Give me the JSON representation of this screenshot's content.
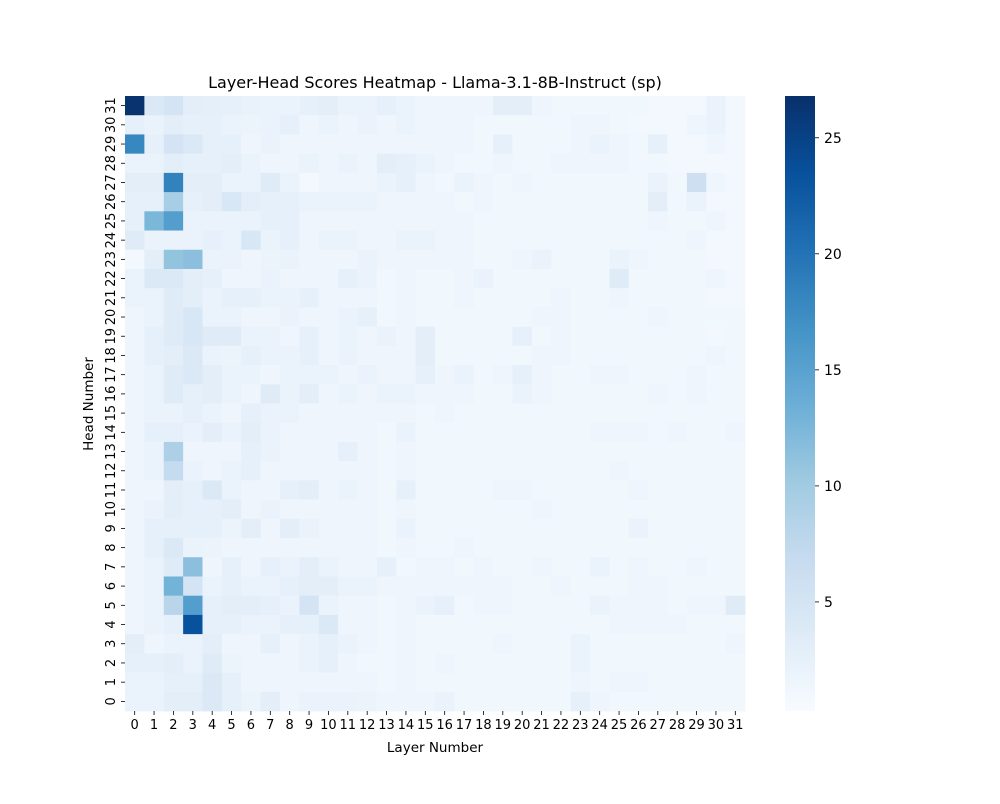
{
  "chart_data": {
    "type": "heatmap",
    "title": "Layer-Head Scores Heatmap - Llama-3.1-8B-Instruct (sp)",
    "xlabel": "Layer Number",
    "ylabel": "Head Number",
    "x_categories": [
      "0",
      "1",
      "2",
      "3",
      "4",
      "5",
      "6",
      "7",
      "8",
      "9",
      "10",
      "11",
      "12",
      "13",
      "14",
      "15",
      "16",
      "17",
      "18",
      "19",
      "20",
      "21",
      "22",
      "23",
      "24",
      "25",
      "26",
      "27",
      "28",
      "29",
      "30",
      "31"
    ],
    "y_categories": [
      "31",
      "30",
      "29",
      "28",
      "27",
      "26",
      "25",
      "24",
      "23",
      "22",
      "21",
      "20",
      "19",
      "18",
      "17",
      "16",
      "15",
      "14",
      "13",
      "12",
      "11",
      "10",
      "9",
      "8",
      "7",
      "6",
      "5",
      "4",
      "3",
      "2",
      "1",
      "0"
    ],
    "colorbar": {
      "vmin": 0.3,
      "vmax": 26.8,
      "ticks": [
        5,
        10,
        15,
        20,
        25
      ],
      "tick_labels": [
        "5",
        "10",
        "15",
        "20",
        "25"
      ],
      "colormap": "Blues"
    },
    "values": [
      [
        26.5,
        4.0,
        5.0,
        3.0,
        2.8,
        2.5,
        2.2,
        2.0,
        2.0,
        2.5,
        3.0,
        2.0,
        2.0,
        2.5,
        2.0,
        1.5,
        1.5,
        1.5,
        1.5,
        3.0,
        3.0,
        1.5,
        1.2,
        1.2,
        1.2,
        1.2,
        1.2,
        1.0,
        1.0,
        1.0,
        2.0,
        1.0
      ],
      [
        2.5,
        2.0,
        3.0,
        2.5,
        2.5,
        2.0,
        1.8,
        2.0,
        2.5,
        1.5,
        2.0,
        1.5,
        2.0,
        1.5,
        2.0,
        1.5,
        1.5,
        1.5,
        1.2,
        1.2,
        1.2,
        1.2,
        1.2,
        1.5,
        1.5,
        1.2,
        1.0,
        1.0,
        1.0,
        1.5,
        2.0,
        1.0
      ],
      [
        18.0,
        2.5,
        5.0,
        4.0,
        2.5,
        2.5,
        1.5,
        2.0,
        1.5,
        1.5,
        1.5,
        1.5,
        1.5,
        1.5,
        1.5,
        1.5,
        1.5,
        1.5,
        1.2,
        2.5,
        1.2,
        1.2,
        1.2,
        1.5,
        2.0,
        1.5,
        1.2,
        2.5,
        1.0,
        1.0,
        1.5,
        1.0
      ],
      [
        2.0,
        2.0,
        3.0,
        2.5,
        2.5,
        3.0,
        2.0,
        1.5,
        1.5,
        2.0,
        1.5,
        2.0,
        1.5,
        3.0,
        2.5,
        2.0,
        1.5,
        1.2,
        1.2,
        1.5,
        1.2,
        1.2,
        1.5,
        1.5,
        1.5,
        1.5,
        1.2,
        1.2,
        1.0,
        1.0,
        1.0,
        1.0
      ],
      [
        3.0,
        3.0,
        18.5,
        3.0,
        3.0,
        2.0,
        2.0,
        3.5,
        2.0,
        1.0,
        1.5,
        1.5,
        1.5,
        2.0,
        2.5,
        1.5,
        1.2,
        2.0,
        1.5,
        1.2,
        1.5,
        1.2,
        1.2,
        1.2,
        1.2,
        1.2,
        1.2,
        2.0,
        1.2,
        6.0,
        1.5,
        1.0
      ],
      [
        2.5,
        2.5,
        9.5,
        2.5,
        3.0,
        4.5,
        3.0,
        2.5,
        2.5,
        2.0,
        2.0,
        2.0,
        2.0,
        1.5,
        1.5,
        1.5,
        1.5,
        1.2,
        1.5,
        1.2,
        1.2,
        1.2,
        1.2,
        1.2,
        1.2,
        1.2,
        1.2,
        3.0,
        1.2,
        2.0,
        1.0,
        1.0
      ],
      [
        2.5,
        12.5,
        15.5,
        2.0,
        2.0,
        2.0,
        2.0,
        2.5,
        2.5,
        1.5,
        1.5,
        1.5,
        1.5,
        1.5,
        1.5,
        1.5,
        1.5,
        1.5,
        1.2,
        1.2,
        1.2,
        1.2,
        1.2,
        1.2,
        1.2,
        1.2,
        1.2,
        1.5,
        1.2,
        1.2,
        1.5,
        1.0
      ],
      [
        3.5,
        2.0,
        2.0,
        2.0,
        2.5,
        2.0,
        4.5,
        2.0,
        2.5,
        1.5,
        2.0,
        2.0,
        1.5,
        1.5,
        2.0,
        2.0,
        1.5,
        1.5,
        1.2,
        1.2,
        1.2,
        1.2,
        1.2,
        1.2,
        1.2,
        1.2,
        1.2,
        1.2,
        1.2,
        1.5,
        1.0,
        1.0
      ],
      [
        1.0,
        3.0,
        11.0,
        11.5,
        2.0,
        2.0,
        1.5,
        1.8,
        2.0,
        1.5,
        1.5,
        1.5,
        2.0,
        1.5,
        1.5,
        1.5,
        1.5,
        1.5,
        1.2,
        1.2,
        1.5,
        2.0,
        1.2,
        1.2,
        1.2,
        2.0,
        1.5,
        1.2,
        1.2,
        1.2,
        1.0,
        1.0
      ],
      [
        2.0,
        4.0,
        4.0,
        3.0,
        2.5,
        1.5,
        1.5,
        2.0,
        1.5,
        1.5,
        1.5,
        2.5,
        2.0,
        1.2,
        1.5,
        1.2,
        1.2,
        1.5,
        2.0,
        1.2,
        1.2,
        1.2,
        1.2,
        1.2,
        1.2,
        3.5,
        1.2,
        1.2,
        1.2,
        1.2,
        1.5,
        1.0
      ],
      [
        2.0,
        2.0,
        3.5,
        3.0,
        2.0,
        2.5,
        2.5,
        2.0,
        2.0,
        2.5,
        1.5,
        1.5,
        1.5,
        1.2,
        1.5,
        1.2,
        1.2,
        1.5,
        1.2,
        1.2,
        1.2,
        1.2,
        1.5,
        1.2,
        1.2,
        1.5,
        1.2,
        1.2,
        1.2,
        1.2,
        1.0,
        1.0
      ],
      [
        1.5,
        2.0,
        3.5,
        4.5,
        2.0,
        2.0,
        1.5,
        1.5,
        2.0,
        1.5,
        1.5,
        2.0,
        2.5,
        1.2,
        1.5,
        1.2,
        1.2,
        1.2,
        1.2,
        1.2,
        1.2,
        1.5,
        1.5,
        1.2,
        1.2,
        1.2,
        1.2,
        1.5,
        1.2,
        1.2,
        1.2,
        1.2
      ],
      [
        1.5,
        2.5,
        3.5,
        4.5,
        3.5,
        3.5,
        2.0,
        2.0,
        1.5,
        2.5,
        1.5,
        2.0,
        1.5,
        2.0,
        1.5,
        3.0,
        1.2,
        1.2,
        1.2,
        1.2,
        2.5,
        1.2,
        1.5,
        1.2,
        1.2,
        1.2,
        1.2,
        1.2,
        1.2,
        1.2,
        1.0,
        1.2
      ],
      [
        1.5,
        2.5,
        3.0,
        4.0,
        2.0,
        1.8,
        2.5,
        2.0,
        2.0,
        2.5,
        1.5,
        2.0,
        1.5,
        1.5,
        1.5,
        3.0,
        1.2,
        1.2,
        1.2,
        1.2,
        1.2,
        1.5,
        1.5,
        1.2,
        1.2,
        1.2,
        1.2,
        1.2,
        1.2,
        1.2,
        1.5,
        1.2
      ],
      [
        1.5,
        2.0,
        3.5,
        4.0,
        3.0,
        2.0,
        2.0,
        1.5,
        2.0,
        2.0,
        2.0,
        1.5,
        2.0,
        1.5,
        1.5,
        2.5,
        1.5,
        2.0,
        1.2,
        1.5,
        2.5,
        1.5,
        1.2,
        1.2,
        1.5,
        1.5,
        1.2,
        1.2,
        1.2,
        1.5,
        1.2,
        1.2
      ],
      [
        1.5,
        2.0,
        3.5,
        2.5,
        3.0,
        2.0,
        1.5,
        3.5,
        2.0,
        3.0,
        1.5,
        2.0,
        1.5,
        2.0,
        2.0,
        1.5,
        1.5,
        1.5,
        1.2,
        1.2,
        2.0,
        1.5,
        1.2,
        1.2,
        1.2,
        1.2,
        1.2,
        1.5,
        1.2,
        1.5,
        1.2,
        1.2
      ],
      [
        1.5,
        2.0,
        2.0,
        2.5,
        2.0,
        1.5,
        2.5,
        2.0,
        2.0,
        1.5,
        1.5,
        1.5,
        1.5,
        1.5,
        1.5,
        1.2,
        1.5,
        1.2,
        1.2,
        1.2,
        1.2,
        1.2,
        1.2,
        1.2,
        1.2,
        1.2,
        1.2,
        1.2,
        1.2,
        1.2,
        1.2,
        1.2
      ],
      [
        1.5,
        2.5,
        2.5,
        2.0,
        3.0,
        2.0,
        3.0,
        2.0,
        1.5,
        1.5,
        1.5,
        1.5,
        1.5,
        1.2,
        2.0,
        1.2,
        1.2,
        1.2,
        1.2,
        1.2,
        1.2,
        1.2,
        1.2,
        1.2,
        1.5,
        1.5,
        1.5,
        1.2,
        1.5,
        1.2,
        1.2,
        1.5
      ],
      [
        1.5,
        2.0,
        9.0,
        1.5,
        1.5,
        1.5,
        2.5,
        2.0,
        1.5,
        1.5,
        1.5,
        2.5,
        1.5,
        1.2,
        1.5,
        1.2,
        1.2,
        1.2,
        1.2,
        1.2,
        1.2,
        1.2,
        1.2,
        1.2,
        1.2,
        1.2,
        1.2,
        1.2,
        1.2,
        1.2,
        1.2,
        1.2
      ],
      [
        1.5,
        2.0,
        7.0,
        2.0,
        1.5,
        2.0,
        2.5,
        1.5,
        1.5,
        1.5,
        1.5,
        1.5,
        1.5,
        1.2,
        1.5,
        1.2,
        1.2,
        1.2,
        1.2,
        1.2,
        1.2,
        1.2,
        1.2,
        1.2,
        1.2,
        1.5,
        1.2,
        1.2,
        1.2,
        1.2,
        1.2,
        1.2
      ],
      [
        1.5,
        1.5,
        3.0,
        2.5,
        4.0,
        2.0,
        1.5,
        1.5,
        2.5,
        3.0,
        1.5,
        2.0,
        1.5,
        1.2,
        2.5,
        1.2,
        1.2,
        1.2,
        1.2,
        1.5,
        1.5,
        1.2,
        1.2,
        1.2,
        1.2,
        1.2,
        1.5,
        1.2,
        1.2,
        1.2,
        1.2,
        1.2
      ],
      [
        1.5,
        2.0,
        3.0,
        2.5,
        2.5,
        3.0,
        1.5,
        2.0,
        1.5,
        1.5,
        1.5,
        1.5,
        1.5,
        1.2,
        1.5,
        1.2,
        1.2,
        1.2,
        1.2,
        1.2,
        1.2,
        1.5,
        1.2,
        1.2,
        1.2,
        1.2,
        1.2,
        1.2,
        1.2,
        1.2,
        1.2,
        1.2
      ],
      [
        1.5,
        2.5,
        2.5,
        2.5,
        2.5,
        1.8,
        3.0,
        1.5,
        3.0,
        2.0,
        1.5,
        1.5,
        1.5,
        1.2,
        2.0,
        1.2,
        1.2,
        1.2,
        1.2,
        1.2,
        1.2,
        1.2,
        1.2,
        1.2,
        1.2,
        1.2,
        2.0,
        1.2,
        1.2,
        1.2,
        1.2,
        1.2
      ],
      [
        1.5,
        2.5,
        4.0,
        2.0,
        1.8,
        1.5,
        1.5,
        1.5,
        1.5,
        1.5,
        1.5,
        1.5,
        1.5,
        1.2,
        1.5,
        1.2,
        1.2,
        1.5,
        1.2,
        1.2,
        1.2,
        1.2,
        1.2,
        1.2,
        1.2,
        1.2,
        1.2,
        1.2,
        1.2,
        1.2,
        1.2,
        1.2
      ],
      [
        1.5,
        2.0,
        3.5,
        11.5,
        1.5,
        2.5,
        1.5,
        2.5,
        2.0,
        3.0,
        2.0,
        1.5,
        1.5,
        2.5,
        1.2,
        1.5,
        1.5,
        1.2,
        1.5,
        1.2,
        1.2,
        1.5,
        1.2,
        1.2,
        2.0,
        1.2,
        1.5,
        1.2,
        1.2,
        1.5,
        1.2,
        1.2
      ],
      [
        1.5,
        2.0,
        13.0,
        5.0,
        2.0,
        2.5,
        2.0,
        2.0,
        2.5,
        3.0,
        3.0,
        2.0,
        2.0,
        1.5,
        1.5,
        1.5,
        1.5,
        1.5,
        1.5,
        1.5,
        1.2,
        1.2,
        1.5,
        1.2,
        1.2,
        1.2,
        1.5,
        1.5,
        1.2,
        1.2,
        1.2,
        1.2
      ],
      [
        1.5,
        2.0,
        8.0,
        15.5,
        2.5,
        3.0,
        3.0,
        2.5,
        2.0,
        5.0,
        2.0,
        1.5,
        1.5,
        1.2,
        1.5,
        2.0,
        2.5,
        1.2,
        1.5,
        1.5,
        1.2,
        1.2,
        1.2,
        1.2,
        2.0,
        1.5,
        1.5,
        1.5,
        1.2,
        1.5,
        1.5,
        3.5
      ],
      [
        1.5,
        2.0,
        2.5,
        23.5,
        2.5,
        2.5,
        2.0,
        2.0,
        2.5,
        2.5,
        4.0,
        1.5,
        1.5,
        1.2,
        1.5,
        1.2,
        1.2,
        1.2,
        1.2,
        1.2,
        1.2,
        1.2,
        1.2,
        1.2,
        1.2,
        1.5,
        1.5,
        1.5,
        1.5,
        1.2,
        1.2,
        1.2
      ],
      [
        3.0,
        1.5,
        2.0,
        2.0,
        3.0,
        1.5,
        1.5,
        2.5,
        1.5,
        2.0,
        2.5,
        2.0,
        1.5,
        1.2,
        1.5,
        1.2,
        1.2,
        1.2,
        1.2,
        1.5,
        1.2,
        1.2,
        1.2,
        2.0,
        1.2,
        1.2,
        1.2,
        1.2,
        1.2,
        1.2,
        1.2,
        1.5
      ],
      [
        2.5,
        2.5,
        3.0,
        2.0,
        3.5,
        1.8,
        1.5,
        1.5,
        1.5,
        2.0,
        2.5,
        1.5,
        1.2,
        1.2,
        1.5,
        1.2,
        1.5,
        1.2,
        1.2,
        1.2,
        1.2,
        1.2,
        1.2,
        2.0,
        1.2,
        1.2,
        1.2,
        1.2,
        1.2,
        1.2,
        1.2,
        1.2
      ],
      [
        2.0,
        2.0,
        2.5,
        2.5,
        4.0,
        2.5,
        1.5,
        1.5,
        1.5,
        1.5,
        1.5,
        1.5,
        1.5,
        1.2,
        1.5,
        1.2,
        1.2,
        1.2,
        1.2,
        1.2,
        1.2,
        1.2,
        1.2,
        1.5,
        1.2,
        1.5,
        1.5,
        1.2,
        1.2,
        1.2,
        1.2,
        1.2
      ],
      [
        2.0,
        2.0,
        3.0,
        3.0,
        4.0,
        2.5,
        1.8,
        3.0,
        1.5,
        2.0,
        2.0,
        2.0,
        1.8,
        1.5,
        1.5,
        1.5,
        2.0,
        1.2,
        1.2,
        1.2,
        1.2,
        1.2,
        1.2,
        2.5,
        1.5,
        1.2,
        1.2,
        1.2,
        1.2,
        1.2,
        1.2,
        1.2
      ]
    ]
  }
}
